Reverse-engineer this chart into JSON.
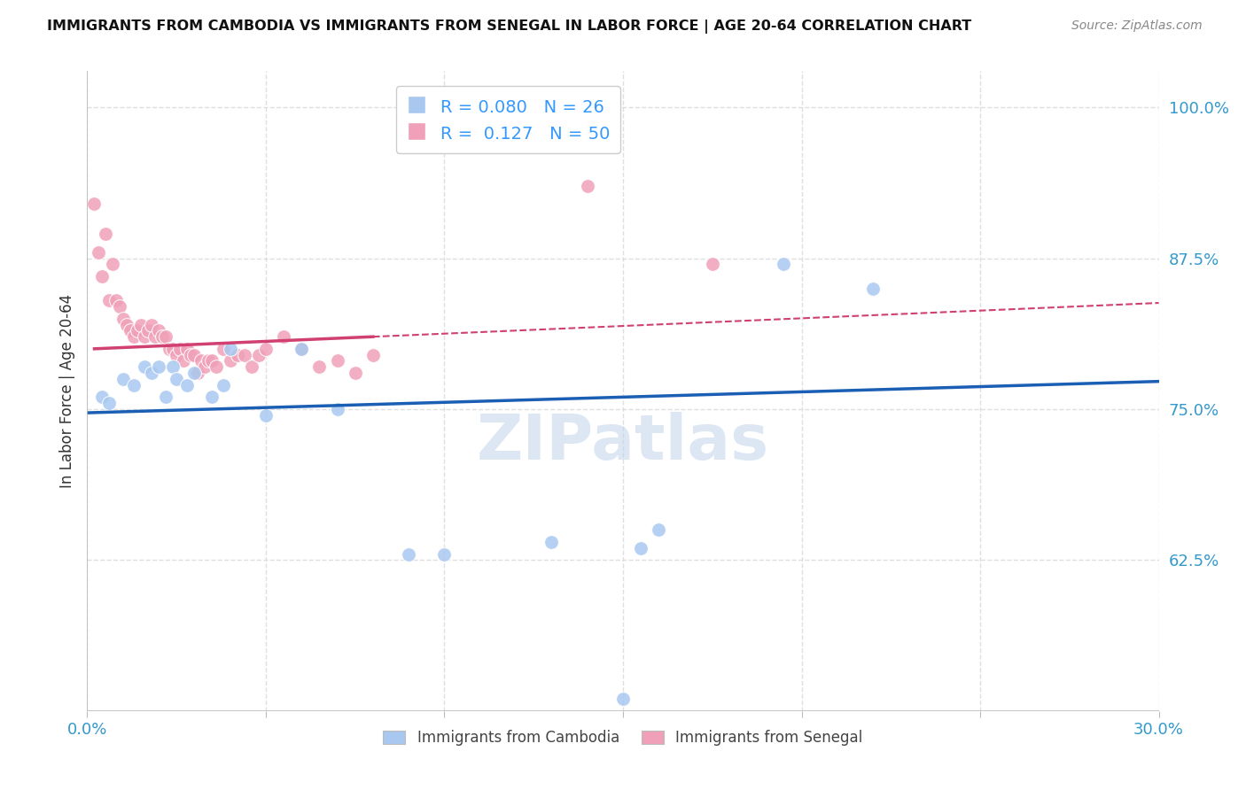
{
  "title": "IMMIGRANTS FROM CAMBODIA VS IMMIGRANTS FROM SENEGAL IN LABOR FORCE | AGE 20-64 CORRELATION CHART",
  "source": "Source: ZipAtlas.com",
  "ylabel": "In Labor Force | Age 20-64",
  "xlim": [
    0.0,
    0.3
  ],
  "ylim": [
    0.5,
    1.03
  ],
  "xticks": [
    0.0,
    0.05,
    0.1,
    0.15,
    0.2,
    0.25,
    0.3
  ],
  "ytick_labels_right": [
    "100.0%",
    "87.5%",
    "75.0%",
    "62.5%"
  ],
  "ytick_vals_right": [
    1.0,
    0.875,
    0.75,
    0.625
  ],
  "watermark": "ZIPatlas",
  "legend_r_cambodia": "0.080",
  "legend_n_cambodia": "26",
  "legend_r_senegal": "0.127",
  "legend_n_senegal": "50",
  "cambodia_color": "#a8c8f0",
  "senegal_color": "#f0a0b8",
  "cambodia_line_color": "#1a5fb4",
  "senegal_line_color": "#d04070",
  "cambodia_x": [
    0.004,
    0.006,
    0.01,
    0.013,
    0.016,
    0.018,
    0.02,
    0.022,
    0.024,
    0.025,
    0.028,
    0.03,
    0.035,
    0.038,
    0.04,
    0.05,
    0.06,
    0.07,
    0.09,
    0.1,
    0.13,
    0.155,
    0.16,
    0.195,
    0.22,
    0.15
  ],
  "cambodia_y": [
    0.76,
    0.755,
    0.775,
    0.77,
    0.785,
    0.78,
    0.785,
    0.76,
    0.785,
    0.775,
    0.77,
    0.78,
    0.76,
    0.77,
    0.8,
    0.745,
    0.8,
    0.75,
    0.63,
    0.63,
    0.64,
    0.635,
    0.65,
    0.87,
    0.85,
    0.51
  ],
  "senegal_x": [
    0.002,
    0.003,
    0.004,
    0.005,
    0.006,
    0.007,
    0.008,
    0.009,
    0.01,
    0.011,
    0.012,
    0.013,
    0.014,
    0.015,
    0.016,
    0.017,
    0.018,
    0.019,
    0.02,
    0.021,
    0.022,
    0.023,
    0.024,
    0.025,
    0.026,
    0.027,
    0.028,
    0.029,
    0.03,
    0.031,
    0.032,
    0.033,
    0.034,
    0.035,
    0.036,
    0.038,
    0.04,
    0.042,
    0.044,
    0.046,
    0.048,
    0.05,
    0.055,
    0.06,
    0.065,
    0.07,
    0.075,
    0.08,
    0.14,
    0.175
  ],
  "senegal_y": [
    0.92,
    0.88,
    0.86,
    0.895,
    0.84,
    0.87,
    0.84,
    0.835,
    0.825,
    0.82,
    0.815,
    0.81,
    0.815,
    0.82,
    0.81,
    0.815,
    0.82,
    0.81,
    0.815,
    0.81,
    0.81,
    0.8,
    0.8,
    0.795,
    0.8,
    0.79,
    0.8,
    0.795,
    0.795,
    0.78,
    0.79,
    0.785,
    0.79,
    0.79,
    0.785,
    0.8,
    0.79,
    0.795,
    0.795,
    0.785,
    0.795,
    0.8,
    0.81,
    0.8,
    0.785,
    0.79,
    0.78,
    0.795,
    0.935,
    0.87
  ],
  "background_color": "#ffffff",
  "grid_color": "#d8d8d8",
  "cam_line_x0": 0.0,
  "cam_line_y0": 0.747,
  "cam_line_x1": 0.3,
  "cam_line_y1": 0.773,
  "sen_line_solid_x0": 0.002,
  "sen_line_solid_y0": 0.8,
  "sen_line_solid_x1": 0.08,
  "sen_line_solid_y1": 0.81,
  "sen_line_dash_x0": 0.08,
  "sen_line_dash_y0": 0.81,
  "sen_line_dash_x1": 0.3,
  "sen_line_dash_y1": 0.838
}
